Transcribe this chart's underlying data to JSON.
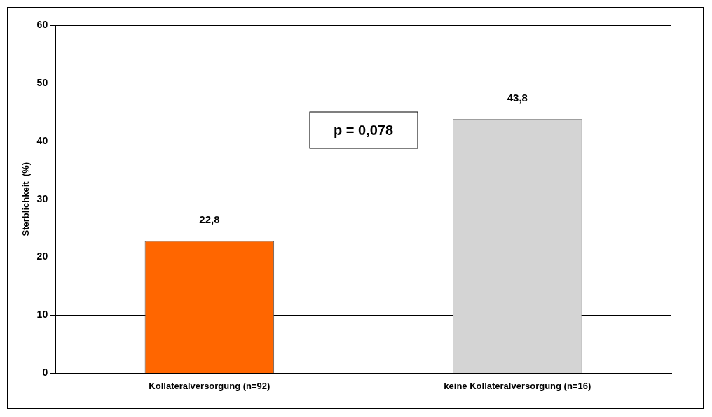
{
  "chart_data": {
    "type": "bar",
    "ylabel": "Sterblichkeit  (%)",
    "categories": [
      "Kollateralversorgung (n=92)",
      "keine Kollateralversorgung (n=16)"
    ],
    "values": [
      22.8,
      43.8
    ],
    "colors": [
      "#ff6600",
      "#d4d4d4"
    ],
    "value_labels": [
      "22,8",
      "43,8"
    ],
    "ylim": [
      0,
      60
    ],
    "yticks": [
      0,
      10,
      20,
      30,
      40,
      50,
      60
    ],
    "grid": "y",
    "legend": false,
    "annotations": [
      "p = 0,078"
    ]
  }
}
